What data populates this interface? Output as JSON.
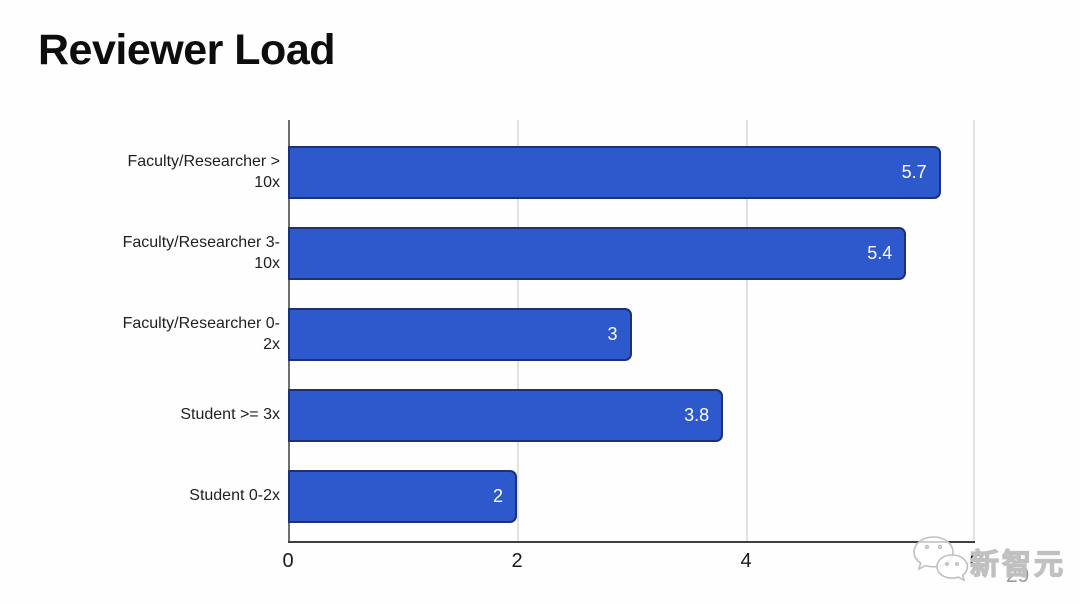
{
  "page": {
    "title": "Reviewer Load"
  },
  "chart_data": {
    "type": "bar",
    "orientation": "horizontal",
    "title": "Reviewer Load",
    "categories": [
      "Faculty/Researcher > 10x",
      "Faculty/Researcher 3-10x",
      "Faculty/Researcher 0-2x",
      "Student >= 3x",
      "Student 0-2x"
    ],
    "values": [
      5.7,
      5.4,
      3,
      3.8,
      2
    ],
    "value_labels": [
      "5.7",
      "5.4",
      "3",
      "3.8",
      "2"
    ],
    "xlabel": "",
    "ylabel": "",
    "xlim": [
      0,
      6
    ],
    "x_ticks": [
      "0",
      "2",
      "4",
      "6"
    ],
    "grid": true,
    "legend": "none",
    "bar_color": "#2d59cc",
    "bar_border_color": "#1e3273",
    "value_label_color": "#ffffff",
    "gridline_color": "#e2e2e2"
  },
  "watermark": {
    "icon": "wechat-icon",
    "text": "新智元",
    "page_number": "29"
  }
}
